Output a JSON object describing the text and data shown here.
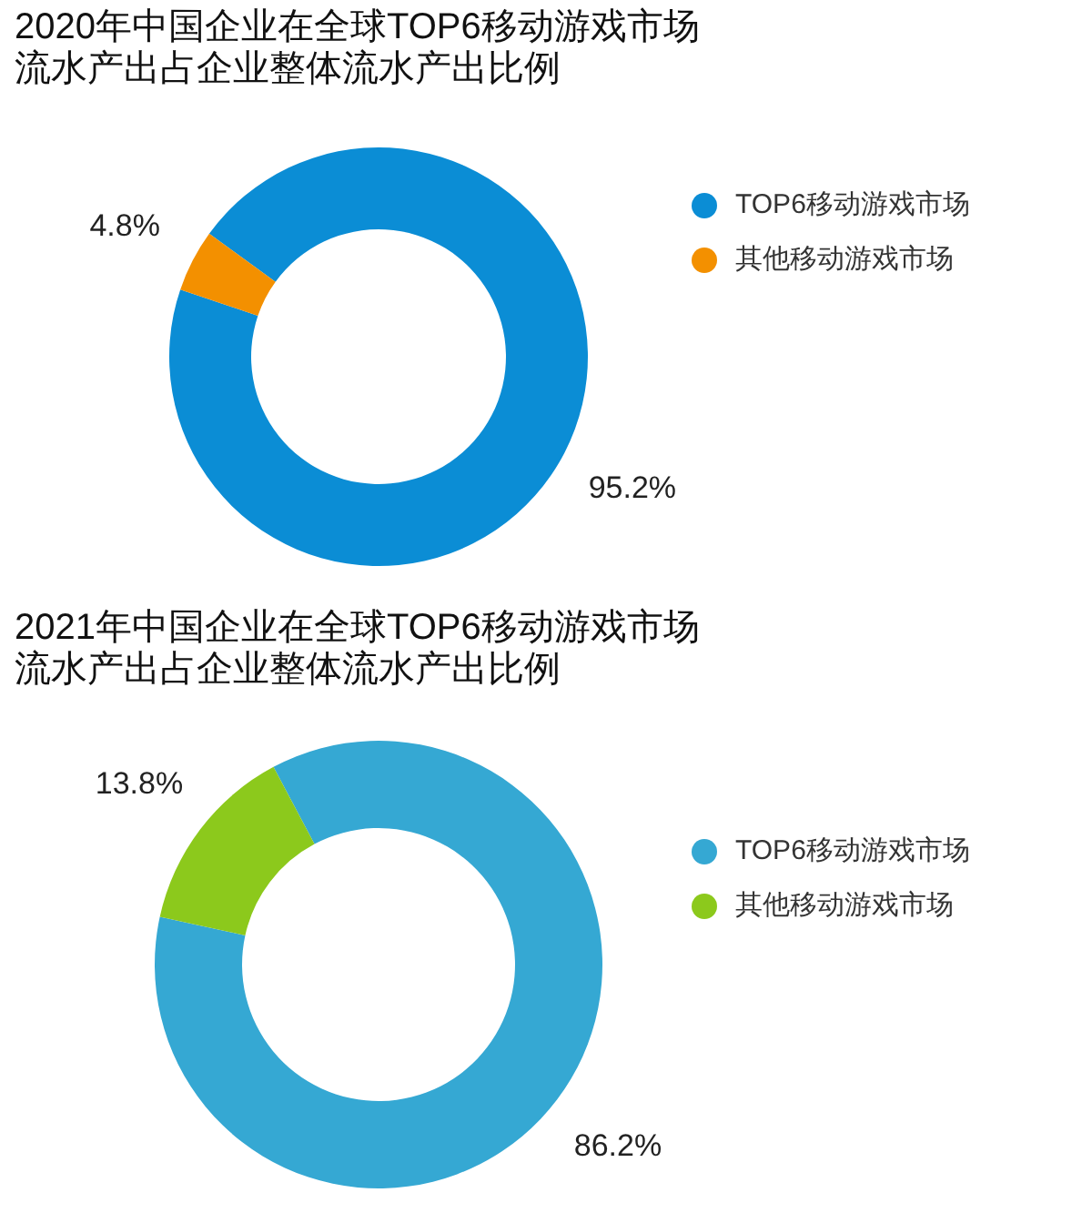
{
  "chart_data": [
    {
      "type": "donut",
      "title": "2020年中国企业在全球TOP6移动游戏市场流水产出占企业整体流水产出比例",
      "categories": [
        "TOP6移动游戏市场",
        "其他移动游戏市场"
      ],
      "values": [
        95.2,
        4.8
      ],
      "colors": [
        "#0b8dd5",
        "#f39000"
      ],
      "value_labels": [
        "95.2%",
        "4.8%"
      ],
      "legend": "right"
    },
    {
      "type": "donut",
      "title": "2021年中国企业在全球TOP6移动游戏市场流水产出占企业整体流水产出比例",
      "categories": [
        "TOP6移动游戏市场",
        "其他移动游戏市场"
      ],
      "values": [
        86.2,
        13.8
      ],
      "colors": [
        "#35a8d3",
        "#8cc91c"
      ],
      "value_labels": [
        "86.2%",
        "13.8%"
      ],
      "legend": "right"
    }
  ]
}
